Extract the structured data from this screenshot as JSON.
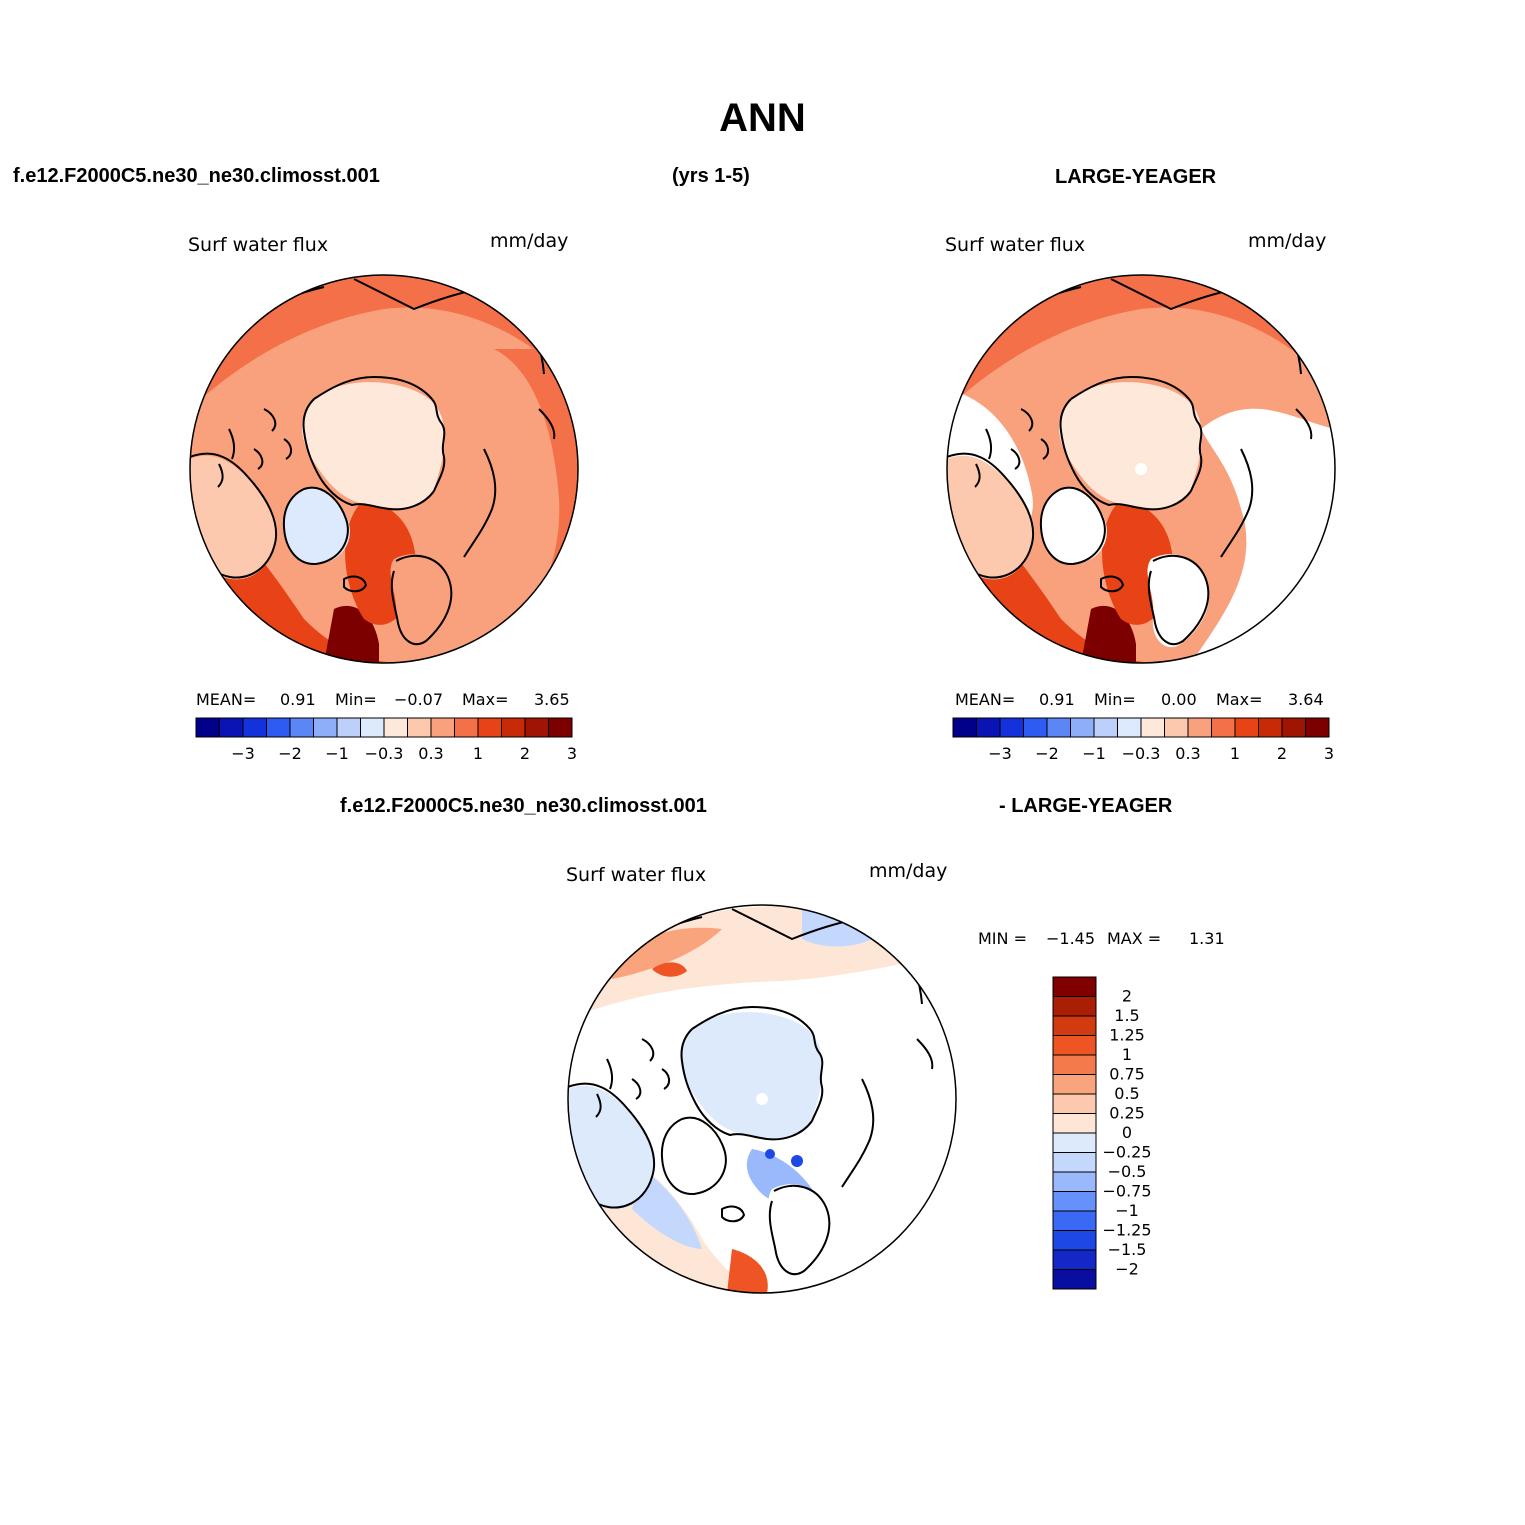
{
  "page": {
    "title": "ANN",
    "case_label": "f.e12.F2000C5.ne30_ne30.climosst.001",
    "years_label": "(yrs 1-5)",
    "obs_label": "LARGE-YEAGER",
    "diff_case_label": "f.e12.F2000C5.ne30_ne30.climosst.001",
    "diff_obs_label": "- LARGE-YEAGER"
  },
  "colors": {
    "ramp": [
      "#00008b",
      "#0a14b4",
      "#1432dc",
      "#2e5bf2",
      "#5a86f6",
      "#8eaefa",
      "#bcd0fb",
      "#dde9fc",
      "#fde8da",
      "#fcc8ae",
      "#f9a07c",
      "#f47048",
      "#e84316",
      "#c82906",
      "#a01404",
      "#7c0000"
    ],
    "diff_ramp": [
      "#00007e",
      "#0a0ea0",
      "#1428c8",
      "#1e48e6",
      "#3a6af5",
      "#6690fa",
      "#9ab8fc",
      "#c4d8fd",
      "#ddeafc",
      "#fde6d6",
      "#fcc9ae",
      "#f9a47c",
      "#f47a4c",
      "#ee5424",
      "#d23a10",
      "#aa1e06",
      "#800000"
    ],
    "coast": "#000000"
  },
  "panels": [
    {
      "id": "model",
      "variable": "Surf water flux",
      "units": "mm/day",
      "stats": {
        "mean_label": "MEAN=",
        "mean": "0.91",
        "min_label": "Min=",
        "min": "−0.07",
        "max_label": "Max=",
        "max": "3.65"
      }
    },
    {
      "id": "obs",
      "variable": "Surf water flux",
      "units": "mm/day",
      "stats": {
        "mean_label": "MEAN=",
        "mean": "0.91",
        "min_label": "Min=",
        "min": "0.00",
        "max_label": "Max=",
        "max": "3.64"
      }
    },
    {
      "id": "diff",
      "variable": "Surf water flux",
      "units": "mm/day",
      "stats": {
        "min_label": "MIN =",
        "min": "−1.45",
        "max_label": "MAX =",
        "max": "1.31"
      }
    }
  ],
  "chart_data": [
    {
      "type": "heatmap",
      "title": "Surf water flux",
      "subtitle": "f.e12.F2000C5.ne30_ne30.climosst.001 (yrs 1-5)",
      "units": "mm/day",
      "projection": "north polar stereographic",
      "stats": {
        "mean": 0.91,
        "min": -0.07,
        "max": 3.65
      },
      "colorbar": {
        "orientation": "horizontal",
        "levels": [
          -3,
          -2,
          -1,
          -0.3,
          0.3,
          1,
          2,
          3
        ],
        "tick_labels": [
          "−3",
          "−2",
          "−1",
          "−0.3",
          "0.3",
          "1",
          "2",
          "3"
        ],
        "n_bins": 16
      }
    },
    {
      "type": "heatmap",
      "title": "Surf water flux",
      "subtitle": "LARGE-YEAGER",
      "units": "mm/day",
      "projection": "north polar stereographic",
      "stats": {
        "mean": 0.91,
        "min": 0.0,
        "max": 3.64
      },
      "colorbar": {
        "orientation": "horizontal",
        "levels": [
          -3,
          -2,
          -1,
          -0.3,
          0.3,
          1,
          2,
          3
        ],
        "tick_labels": [
          "−3",
          "−2",
          "−1",
          "−0.3",
          "0.3",
          "1",
          "2",
          "3"
        ],
        "n_bins": 16
      }
    },
    {
      "type": "heatmap",
      "title": "Surf water flux",
      "subtitle": "f.e12.F2000C5.ne30_ne30.climosst.001 - LARGE-YEAGER",
      "units": "mm/day",
      "projection": "north polar stereographic",
      "stats": {
        "min": -1.45,
        "max": 1.31
      },
      "colorbar": {
        "orientation": "vertical",
        "levels": [
          2,
          1.5,
          1.25,
          1,
          0.75,
          0.5,
          0.25,
          0,
          -0.25,
          -0.5,
          -0.75,
          -1,
          -1.25,
          -1.5,
          -2
        ],
        "tick_labels": [
          "2",
          "1.5",
          "1.25",
          "1",
          "0.75",
          "0.5",
          "0.25",
          "0",
          "−0.25",
          "−0.5",
          "−0.75",
          "−1",
          "−1.25",
          "−1.5",
          "−2"
        ],
        "n_bins": 16
      }
    }
  ]
}
